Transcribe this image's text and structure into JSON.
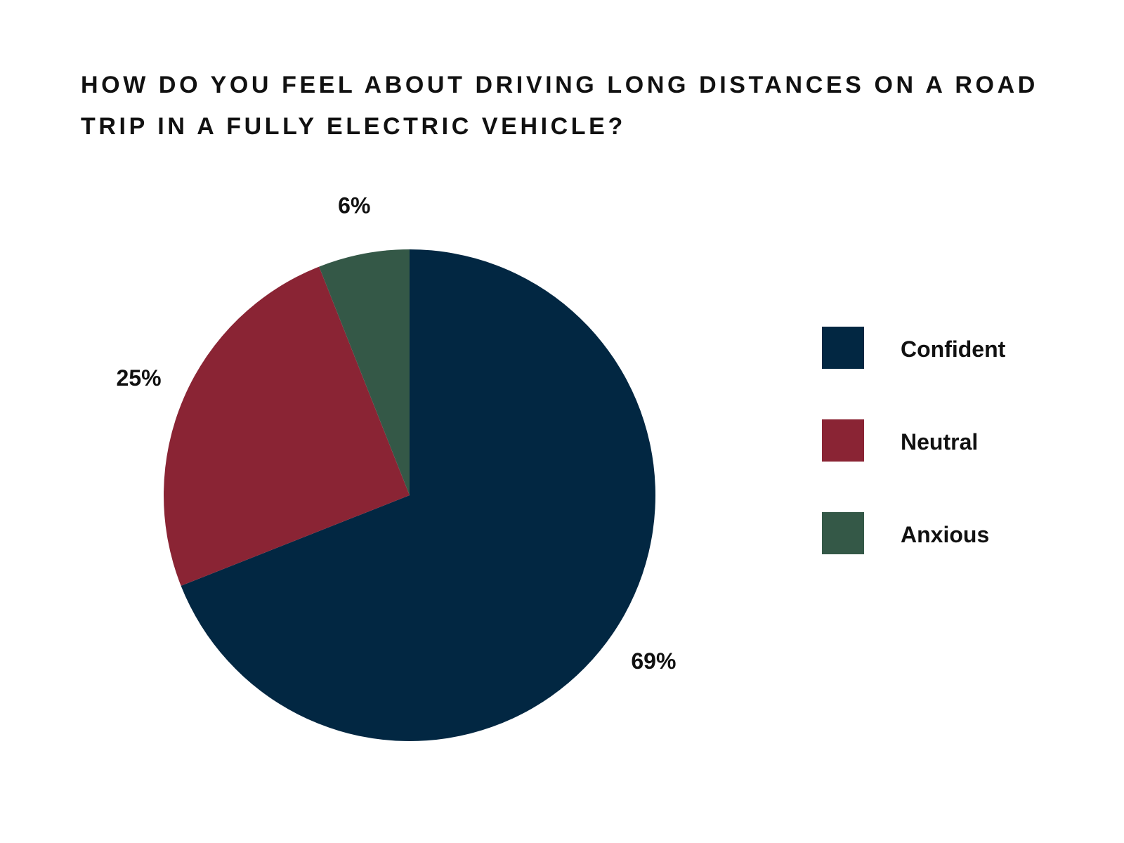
{
  "chart_data": {
    "type": "pie",
    "title": "HOW DO YOU FEEL ABOUT DRIVING LONG DISTANCES ON A ROAD TRIP IN A FULLY ELECTRIC VEHICLE?",
    "categories": [
      "Confident",
      "Neutral",
      "Anxious"
    ],
    "values": [
      69,
      25,
      6
    ],
    "data_labels": [
      "69%",
      "25%",
      "6%"
    ],
    "colors": [
      "#022742",
      "#8A2434",
      "#345847"
    ],
    "start_angle": "12 o'clock",
    "direction": "clockwise",
    "legend_placement": "right"
  }
}
